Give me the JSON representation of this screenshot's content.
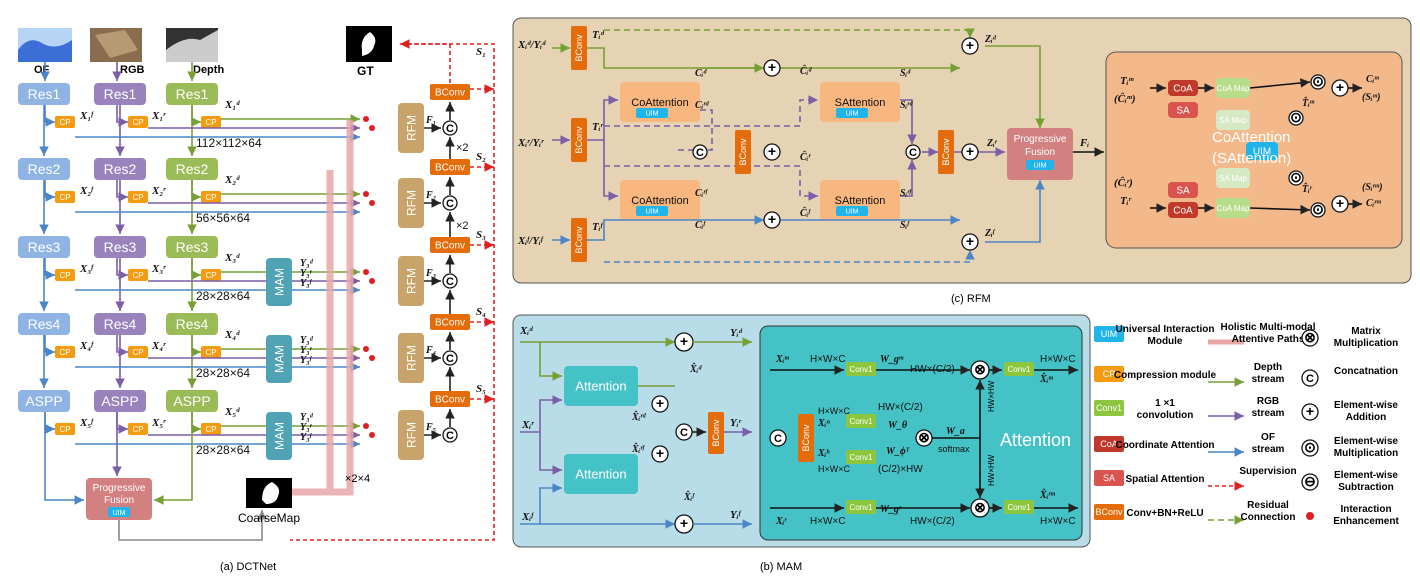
{
  "colors": {
    "res": "#8fb4e3",
    "rgb_res": "#9a83bd",
    "depth_res": "#9bbb59",
    "cp": "#f39c12",
    "bconv": "#e46c0a",
    "rfm": "#c9a46a",
    "mam": "#4fa3b5",
    "uim": "#1fb5ea",
    "coa": "#c0392b",
    "sa": "#d9534f",
    "conv1": "#8cc63f",
    "pfusion": "#d38080",
    "depth_stream": "#76a035",
    "rgb_stream": "#7b5ea7",
    "of_stream": "#4a86c8",
    "supervision": "#e02020",
    "rfm_bg": "#e6d3b3",
    "mam_bg": "#b8dde8"
  },
  "panel_a": {
    "caption": "(a) DCTNet",
    "inputs": {
      "of": "OF",
      "rgb": "RGB",
      "depth": "Depth",
      "gt": "GT"
    },
    "res_labels": [
      "Res1",
      "Res2",
      "Res3",
      "Res4",
      "ASPP"
    ],
    "cp": "CP",
    "sizes": [
      "112×112×64",
      "56×56×64",
      "28×28×64",
      "28×28×64",
      "28×28×64"
    ],
    "mam": "MAM",
    "rfm": "RFM",
    "bconv": "BConv",
    "progressive_fusion": "Progressive Fusion",
    "uim": "UIM",
    "coarse_map": "CoarseMap",
    "times2": "×2",
    "times24": "×2×4",
    "c": "C",
    "x_labels": {
      "d": [
        "X₁ᵈ",
        "X₂ᵈ",
        "X₃ᵈ",
        "X₄ᵈ",
        "X₅ᵈ"
      ],
      "r": [
        "X₁ʳ",
        "X₂ʳ",
        "X₃ʳ",
        "X₄ʳ",
        "X₅ʳ"
      ],
      "f": [
        "X₁ᶠ",
        "X₂ᶠ",
        "X₃ᶠ",
        "X₄ᶠ",
        "X₅ᶠ"
      ]
    },
    "y_labels": [
      "Y₃ᵈ",
      "Y₃ʳ",
      "Y₃ᶠ"
    ],
    "f_labels": [
      "F₁",
      "F₂",
      "F₃",
      "F₄",
      "F₅"
    ],
    "s_labels": [
      "S₁",
      "S₂",
      "S₃",
      "S₄",
      "S₅"
    ]
  },
  "panel_b": {
    "caption": "(b) MAM",
    "attention": "Attention",
    "bconv": "BConv",
    "conv1": "Conv1",
    "hwc": "H×W×C",
    "hwc2": "HW×(C/2)",
    "c2hw": "(C/2)×HW",
    "hwhw": "HW×HW",
    "softmax": "softmax",
    "big_attention": "Attention",
    "labels": {
      "xd": "Xᵢᵈ",
      "xr": "Xᵢʳ",
      "xf": "Xᵢᶠ",
      "yd": "Yᵢᵈ",
      "yr": "Yᵢʳ",
      "yf": "Yᵢᶠ",
      "hxd": "X̂ᵢᵈ",
      "hxrd": "X̂ᵢʳᵈ",
      "hxrf": "X̂ᵢʳᶠ",
      "hxf": "X̂ᵢᶠ",
      "xm": "Xᵢᵐ",
      "xn": "Xᵢⁿ",
      "xh": "Xᵢʰ",
      "xir": "Xᵢʳ",
      "wgm": "W_gᵐ",
      "wtheta": "W_θ",
      "wphi": "W_ϕᵀ",
      "wa": "W_a",
      "wgr": "W_gʳ",
      "hxm": "X̂ᵢᵐ",
      "hxrm": "X̂ᵢʳᵐ"
    }
  },
  "panel_c": {
    "caption": "(c) RFM",
    "bconv": "BConv",
    "coattention": "CoAttention",
    "sattention": "SAttention",
    "uim": "UIM",
    "progressive_fusion": "Progressive Fusion",
    "coattention_sattention": "CoAttention (SAttention)",
    "coa": "CoA",
    "sa": "SA",
    "coa_map": "CoA Map",
    "sa_map": "SA Map",
    "labels": {
      "in_d": "Xᵢᵈ/Yᵢᵈ",
      "in_r": "Xᵢʳ/Yᵢʳ",
      "in_f": "Xᵢᶠ/Yᵢᶠ",
      "td": "Tᵢᵈ",
      "tr": "Tᵢʳ",
      "tf": "Tᵢᶠ",
      "cd": "Cᵢᵈ",
      "crd": "Cᵢʳᵈ",
      "crf": "Cᵢʳᶠ",
      "cf": "Cᵢᶠ",
      "hcd": "Ĉᵢᵈ",
      "hcr": "Ĉᵢʳ",
      "hcf": "Ĉᵢᶠ",
      "sd": "Sᵢᵈ",
      "srd": "Sᵢʳᵈ",
      "srf": "Sᵢʳᶠ",
      "sf": "Sᵢᶠ",
      "zd": "Zᵢᵈ",
      "zr": "Zᵢʳ",
      "zf": "Zᵢᶠ",
      "fi": "Fᵢ",
      "tm": "Tᵢᵐ",
      "hcm": "(Ĉᵢᵐ)",
      "hcr2": "(Ĉᵢʳ)",
      "tr2": "Tᵢʳ",
      "htm": "T̂ᵢᵐ",
      "htr": "T̂ᵢʳ",
      "cm": "Cᵢᵐ",
      "sm": "(Sᵢᵐ)",
      "crm": "Cᵢʳᵐ",
      "srm": "(Sᵢʳᵐ)"
    }
  },
  "legend": [
    {
      "key": "UIM",
      "kind": "uim",
      "text": "Universal Interaction Module"
    },
    {
      "key": "CP",
      "kind": "cp",
      "text": "Compression module"
    },
    {
      "key": "Conv1",
      "kind": "conv1",
      "text": "1 ×1 convolution"
    },
    {
      "key": "CoA",
      "kind": "coa",
      "text": "Coordinate Attention"
    },
    {
      "key": "SA",
      "kind": "sa",
      "text": "Spatial Attention"
    },
    {
      "key": "BConv",
      "kind": "bconv",
      "text": "Conv+BN+ReLU"
    }
  ],
  "legend_lines": [
    {
      "kind": "holistic",
      "text": "Holistic Multi-modal Attentive Paths"
    },
    {
      "kind": "depth",
      "text": "Depth stream"
    },
    {
      "kind": "rgb",
      "text": "RGB stream"
    },
    {
      "kind": "of",
      "text": "OF stream"
    },
    {
      "kind": "sup",
      "text": "Supervision"
    },
    {
      "kind": "res",
      "text": "Residual Connection"
    }
  ],
  "legend_ops": [
    {
      "sym": "⊗",
      "text": "Matrix Multiplication"
    },
    {
      "sym": "C",
      "text": "Concatnation"
    },
    {
      "sym": "⊕",
      "text": "Element-wise Addition"
    },
    {
      "sym": "⊙",
      "text": "Element-wise Multiplication"
    },
    {
      "sym": "⊖",
      "text": "Element-wise Subtraction"
    },
    {
      "sym": "•",
      "text": "Interaction Enhancement"
    }
  ]
}
